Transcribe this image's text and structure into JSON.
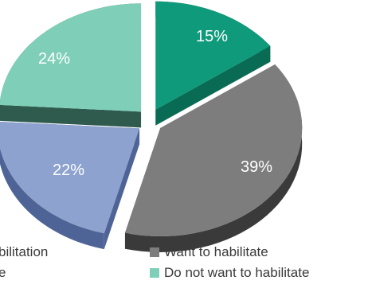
{
  "chart_data": {
    "type": "pie",
    "style": "3d-exploded",
    "slices": [
      {
        "label": "15%",
        "value": 15,
        "legend": "",
        "color": "#0f9a7c",
        "side_color": "#0a6b55"
      },
      {
        "label": "39%",
        "value": 39,
        "legend": "Want to habilitate",
        "color": "#7d7d7d",
        "side_color": "#3a3a3a"
      },
      {
        "label": "22%",
        "value": 22,
        "legend": "",
        "color": "#8da2cf",
        "side_color": "#4f6496"
      },
      {
        "label": "24%",
        "value": 24,
        "legend": "Do not want to habilitate",
        "color": "#7fcfb8",
        "side_color": "#2f5a4e"
      }
    ],
    "legend_partial": [
      "bilitation",
      "e"
    ]
  }
}
